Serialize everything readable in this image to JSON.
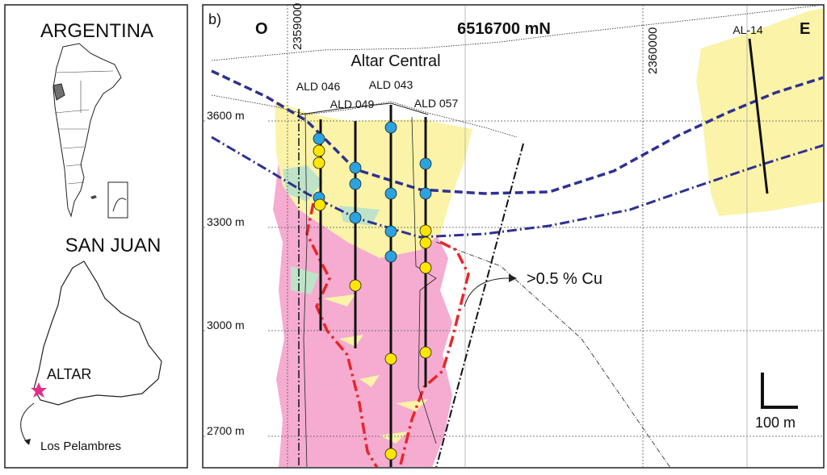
{
  "left_panel": {
    "country": "ARGENTINA",
    "province": "SAN JUAN",
    "site": "ALTAR",
    "nearby": "Los Pelambres"
  },
  "section": {
    "panel_label": "b)",
    "west": "O",
    "east": "E",
    "northing": "6516700 mN",
    "eastings": [
      "2359000",
      "2360000"
    ],
    "deposit": "Altar Central",
    "drill_holes": [
      "ALD 046",
      "ALD 049",
      "ALD 043",
      "ALD 057",
      "AL-14"
    ],
    "elevations": [
      "3600 m",
      "3300 m",
      "3000 m",
      "2700 m"
    ],
    "annotation": ">0.5 % Cu",
    "scale": "100 m"
  }
}
